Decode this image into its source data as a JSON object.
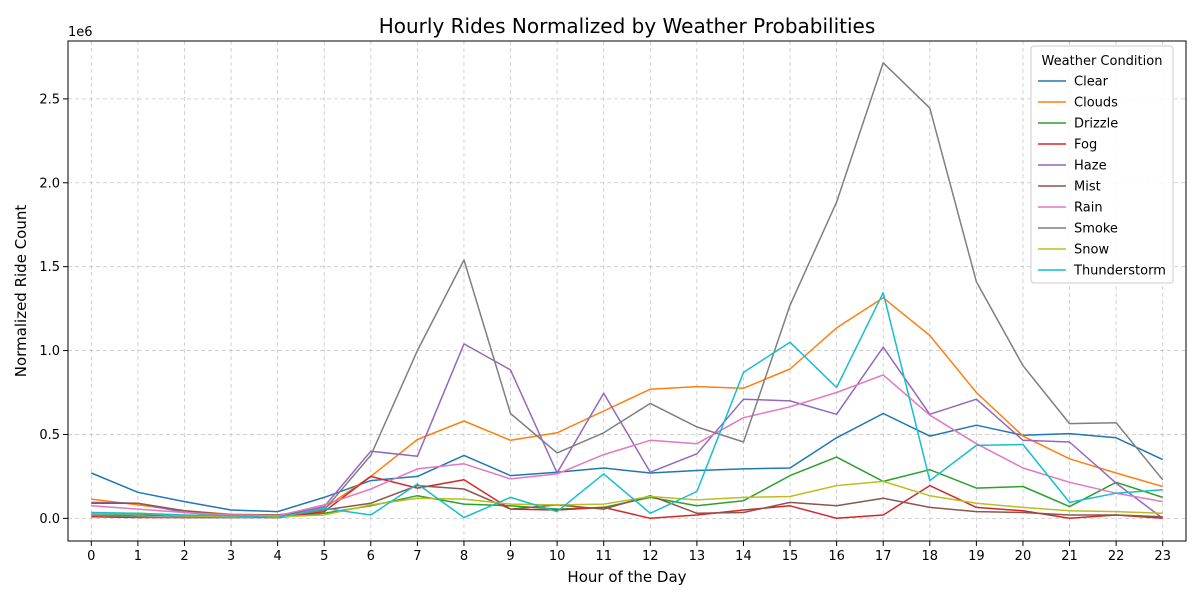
{
  "chart_data": {
    "type": "line",
    "title": "Hourly Rides Normalized by Weather Probabilities",
    "xlabel": "Hour of the Day",
    "ylabel": "Normalized Ride Count",
    "y_offset_label": "1e6",
    "x": [
      0,
      1,
      2,
      3,
      4,
      5,
      6,
      7,
      8,
      9,
      10,
      11,
      12,
      13,
      14,
      15,
      16,
      17,
      18,
      19,
      20,
      21,
      22,
      23
    ],
    "xlim": [
      -0.5,
      23.5
    ],
    "ylim": [
      -135000,
      2845000
    ],
    "y_ticks": [
      0,
      500000,
      1000000,
      1500000,
      2000000,
      2500000
    ],
    "y_tick_labels": [
      "0.0",
      "0.5",
      "1.0",
      "1.5",
      "2.0",
      "2.5"
    ],
    "grid": true,
    "legend_title": "Weather Condition",
    "legend_position": "top-right",
    "series": [
      {
        "name": "Clear",
        "color": "#1f77b4",
        "values": [
          270000,
          155000,
          100000,
          50000,
          40000,
          125000,
          225000,
          250000,
          375000,
          255000,
          275000,
          300000,
          270000,
          285000,
          295000,
          300000,
          480000,
          625000,
          490000,
          555000,
          495000,
          505000,
          480000,
          350000
        ]
      },
      {
        "name": "Clouds",
        "color": "#ff7f0e",
        "values": [
          115000,
          80000,
          45000,
          25000,
          20000,
          60000,
          250000,
          470000,
          580000,
          465000,
          510000,
          640000,
          770000,
          785000,
          775000,
          890000,
          1135000,
          1315000,
          1090000,
          750000,
          490000,
          355000,
          270000,
          190000
        ]
      },
      {
        "name": "Drizzle",
        "color": "#2ca02c",
        "values": [
          20000,
          20000,
          15000,
          10000,
          5000,
          30000,
          75000,
          135000,
          85000,
          75000,
          55000,
          65000,
          125000,
          75000,
          105000,
          255000,
          365000,
          220000,
          290000,
          180000,
          190000,
          70000,
          215000,
          125000
        ]
      },
      {
        "name": "Fog",
        "color": "#d62728",
        "values": [
          10000,
          5000,
          5000,
          5000,
          5000,
          40000,
          250000,
          180000,
          230000,
          55000,
          50000,
          65000,
          0,
          20000,
          50000,
          75000,
          0,
          20000,
          195000,
          65000,
          45000,
          0,
          20000,
          0
        ]
      },
      {
        "name": "Haze",
        "color": "#9467bd",
        "values": [
          95000,
          90000,
          35000,
          15000,
          10000,
          70000,
          400000,
          370000,
          1040000,
          885000,
          270000,
          745000,
          275000,
          385000,
          710000,
          700000,
          620000,
          1020000,
          620000,
          710000,
          465000,
          455000,
          210000,
          0
        ]
      },
      {
        "name": "Mist",
        "color": "#8c564b",
        "values": [
          90000,
          90000,
          45000,
          20000,
          20000,
          50000,
          90000,
          195000,
          175000,
          55000,
          80000,
          55000,
          135000,
          30000,
          35000,
          95000,
          75000,
          120000,
          65000,
          40000,
          35000,
          20000,
          20000,
          10000
        ]
      },
      {
        "name": "Rain",
        "color": "#e377c2",
        "values": [
          75000,
          55000,
          35000,
          20000,
          15000,
          80000,
          175000,
          295000,
          325000,
          235000,
          265000,
          380000,
          465000,
          445000,
          600000,
          665000,
          750000,
          855000,
          615000,
          445000,
          300000,
          215000,
          150000,
          100000
        ]
      },
      {
        "name": "Smoke",
        "color": "#7f7f7f",
        "values": [
          20000,
          10000,
          5000,
          5000,
          10000,
          50000,
          375000,
          1000000,
          1540000,
          625000,
          390000,
          510000,
          685000,
          545000,
          455000,
          1270000,
          1885000,
          2715000,
          2445000,
          1410000,
          910000,
          565000,
          570000,
          230000
        ]
      },
      {
        "name": "Snow",
        "color": "#bcbd22",
        "values": [
          30000,
          30000,
          15000,
          10000,
          10000,
          20000,
          80000,
          120000,
          115000,
          85000,
          80000,
          85000,
          130000,
          110000,
          125000,
          130000,
          195000,
          220000,
          135000,
          90000,
          65000,
          45000,
          40000,
          30000
        ]
      },
      {
        "name": "Thunderstorm",
        "color": "#17becf",
        "values": [
          35000,
          30000,
          20000,
          15000,
          5000,
          60000,
          20000,
          205000,
          5000,
          125000,
          40000,
          265000,
          30000,
          160000,
          870000,
          1050000,
          780000,
          1345000,
          225000,
          435000,
          440000,
          95000,
          150000,
          170000
        ]
      }
    ]
  }
}
